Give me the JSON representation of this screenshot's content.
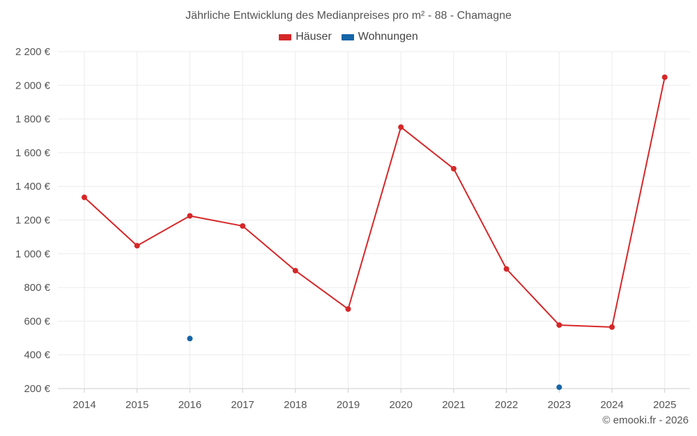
{
  "chart_data": {
    "type": "line",
    "title": "Jährliche Entwicklung des Medianpreises pro m² - 88 - Chamagne",
    "x": [
      "2014",
      "2015",
      "2016",
      "2017",
      "2018",
      "2019",
      "2020",
      "2021",
      "2022",
      "2023",
      "2024",
      "2025"
    ],
    "series": [
      {
        "name": "Häuser",
        "color": "#d62728",
        "values": [
          1335,
          1048,
          1225,
          1165,
          900,
          672,
          1752,
          1505,
          910,
          577,
          565,
          2048
        ]
      },
      {
        "name": "Wohnungen",
        "color": "#1565a7",
        "values": [
          null,
          null,
          497,
          null,
          null,
          null,
          null,
          null,
          null,
          208,
          null,
          null
        ]
      }
    ],
    "ylim": [
      200,
      2200
    ],
    "yticks": [
      200,
      400,
      600,
      800,
      1000,
      1200,
      1400,
      1600,
      1800,
      2000,
      2200
    ],
    "ytick_labels": [
      "200 €",
      "400 €",
      "600 €",
      "800 €",
      "1 000 €",
      "1 200 €",
      "1 400 €",
      "1 600 €",
      "1 800 €",
      "2 000 €",
      "2 200 €"
    ],
    "grid": true,
    "legend_position": "top-center"
  },
  "footer": {
    "copyright": "© emooki.fr - 2026"
  }
}
